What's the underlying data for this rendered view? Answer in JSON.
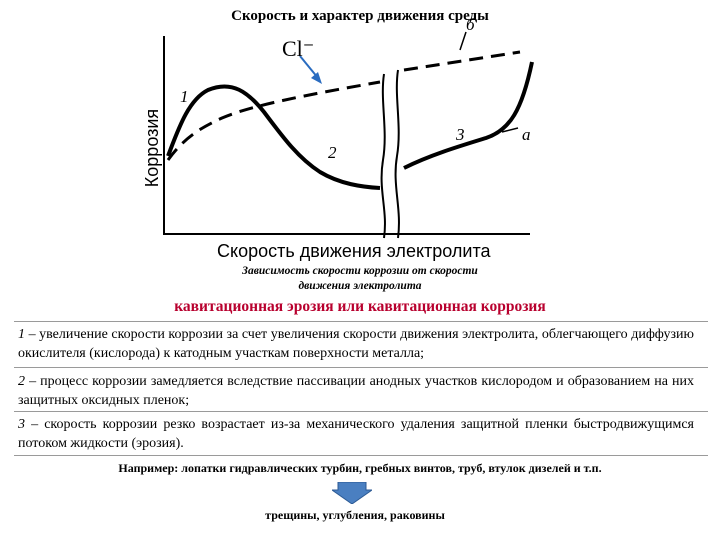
{
  "page": {
    "title": "Скорость и характер движения среды",
    "caption_line1": "Зависимость скорости коррозии от скорости",
    "caption_line2": "движения электролита",
    "heading": "кавитационная эрозия или кавитационная коррозия",
    "items": [
      {
        "num": "1",
        "text": "увеличение скорости коррозии за счет увеличения скорости движения электролита, облегчающего диффузию окислителя (кислорода) к катодным участкам поверхности металла;"
      },
      {
        "num": "2",
        "text": "процесс коррозии замедляется вследствие пассивации анодных участков кислородом и образованием на них защитных оксидных пленок;"
      },
      {
        "num": "3",
        "text": "скорость коррозии резко возрастает из-за механического удаления защитной пленки быстродвижущимся потоком жидкости (эрозия)."
      }
    ],
    "dash": "–",
    "example": "Например: лопатки гидравлических турбин, гребных винтов, труб, втулок дизелей и т.п.",
    "result": "трещины, углубления, раковины",
    "arrow_color": "#4a7fc1",
    "heading_color": "#b8002e"
  },
  "chart_data": {
    "type": "line",
    "title": "",
    "xlabel": "Скорость движения электролита",
    "ylabel": "Коррозия",
    "axis_ticks": "none",
    "break_in_x_axis": true,
    "annotation": "Cl⁻",
    "curve_labels": [
      "1",
      "2",
      "3",
      "а",
      "б"
    ],
    "series": [
      {
        "name": "а",
        "style": "solid",
        "shape": "rises to a maximum (1), falls (2), then rises sharply after the break (3)"
      },
      {
        "name": "б",
        "style": "dashed",
        "shape": "rises steadily across the whole range, in presence of Cl⁻"
      }
    ]
  }
}
